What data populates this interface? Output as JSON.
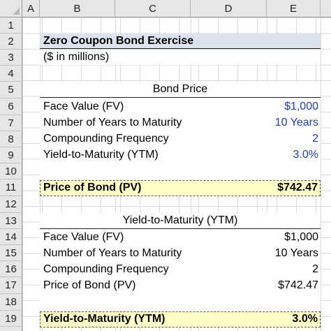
{
  "columns": [
    "A",
    "B",
    "C",
    "D",
    "E"
  ],
  "rows": [
    "1",
    "2",
    "3",
    "4",
    "5",
    "6",
    "7",
    "8",
    "9",
    "10",
    "11",
    "12",
    "13",
    "14",
    "15",
    "16",
    "17",
    "18",
    "19",
    "20"
  ],
  "title": "Zero Coupon Bond Exercise",
  "subtitle": "($ in millions)",
  "bond_price": {
    "header": "Bond Price",
    "items": [
      {
        "label": "Face Value (FV)",
        "value": "$1,000"
      },
      {
        "label": "Number of Years to Maturity",
        "value": "10 Years"
      },
      {
        "label": "Compounding Frequency",
        "value": "2"
      },
      {
        "label": "Yield-to-Maturity (YTM)",
        "value": "3.0%"
      }
    ],
    "result_label": "Price of Bond (PV)",
    "result_value": "$742.47"
  },
  "ytm": {
    "header": "Yield-to-Maturity (YTM)",
    "items": [
      {
        "label": "Face Value (FV)",
        "value": "$1,000"
      },
      {
        "label": "Number of Years to Maturity",
        "value": "10 Years"
      },
      {
        "label": "Compounding Frequency",
        "value": "2"
      },
      {
        "label": "Price of Bond (PV)",
        "value": "$742.47"
      }
    ],
    "result_label": "Yield-to-Maturity (YTM)",
    "result_value": "3.0%"
  },
  "colors": {
    "input_blue": "#1f3fb0",
    "title_band": "#dde3ee",
    "result_band": "#ffffc6",
    "header_gray": "#e6e6e6"
  }
}
